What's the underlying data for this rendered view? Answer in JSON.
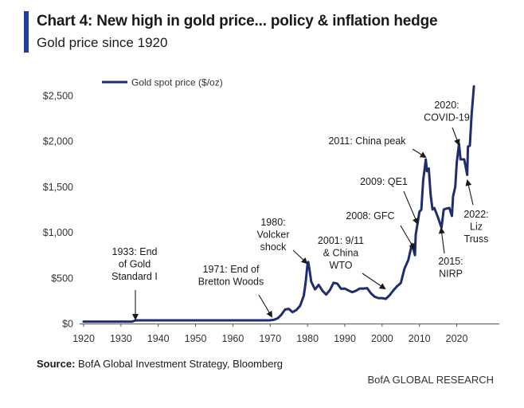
{
  "header": {
    "title": "Chart 4: New high in gold price... policy & inflation hedge",
    "subtitle": "Gold price since 1920"
  },
  "footer": {
    "source_label": "Source:",
    "source_text": " BofA Global Investment Strategy, Bloomberg",
    "brand": "BofA GLOBAL RESEARCH"
  },
  "colors": {
    "line": "#1f2d6e",
    "accent": "#1f3d99",
    "axis": "#555555"
  },
  "chart_data": {
    "type": "line",
    "title": "",
    "xlabel": "",
    "ylabel": "",
    "xlim": [
      1920,
      2025
    ],
    "ylim": [
      0,
      2700
    ],
    "x_ticks": [
      1920,
      1930,
      1940,
      1950,
      1960,
      1970,
      1980,
      1990,
      2000,
      2010,
      2020
    ],
    "y_ticks": [
      0,
      500,
      1000,
      1500,
      2000,
      2500
    ],
    "y_tick_labels": [
      "$0",
      "$500",
      "$1,000",
      "$1,500",
      "$2,000",
      "$2,500"
    ],
    "legend": {
      "position": "top-left",
      "entries": [
        "Gold spot price ($/oz)"
      ]
    },
    "series": [
      {
        "name": "Gold spot price ($/oz)",
        "points": [
          [
            1920,
            20.7
          ],
          [
            1933,
            20.7
          ],
          [
            1934,
            35
          ],
          [
            1968,
            35
          ],
          [
            1970,
            36
          ],
          [
            1971,
            41
          ],
          [
            1972,
            58
          ],
          [
            1973,
            97
          ],
          [
            1974,
            154
          ],
          [
            1975,
            161
          ],
          [
            1976,
            125
          ],
          [
            1977,
            148
          ],
          [
            1978,
            193
          ],
          [
            1979,
            306
          ],
          [
            1979.5,
            450
          ],
          [
            1980,
            650
          ],
          [
            1980.2,
            675
          ],
          [
            1980.5,
            600
          ],
          [
            1981,
            460
          ],
          [
            1982,
            375
          ],
          [
            1983,
            424
          ],
          [
            1984,
            360
          ],
          [
            1985,
            317
          ],
          [
            1986,
            368
          ],
          [
            1987,
            447
          ],
          [
            1988,
            437
          ],
          [
            1989,
            381
          ],
          [
            1990,
            384
          ],
          [
            1991,
            362
          ],
          [
            1992,
            344
          ],
          [
            1993,
            360
          ],
          [
            1994,
            384
          ],
          [
            1995,
            384
          ],
          [
            1996,
            388
          ],
          [
            1997,
            331
          ],
          [
            1998,
            294
          ],
          [
            1999,
            279
          ],
          [
            2000,
            279
          ],
          [
            2001,
            271
          ],
          [
            2002,
            310
          ],
          [
            2003,
            363
          ],
          [
            2004,
            409
          ],
          [
            2005,
            445
          ],
          [
            2006,
            604
          ],
          [
            2007,
            696
          ],
          [
            2008,
            872
          ],
          [
            2008.8,
            750
          ],
          [
            2009,
            972
          ],
          [
            2010,
            1225
          ],
          [
            2010.5,
            1250
          ],
          [
            2011,
            1570
          ],
          [
            2011.7,
            1800
          ],
          [
            2012,
            1670
          ],
          [
            2012.5,
            1700
          ],
          [
            2013,
            1410
          ],
          [
            2013.5,
            1250
          ],
          [
            2014,
            1266
          ],
          [
            2015,
            1160
          ],
          [
            2015.9,
            1050
          ],
          [
            2016.5,
            1250
          ],
          [
            2017,
            1257
          ],
          [
            2018,
            1268
          ],
          [
            2018.7,
            1180
          ],
          [
            2019,
            1393
          ],
          [
            2019.6,
            1500
          ],
          [
            2020,
            1770
          ],
          [
            2020.6,
            1970
          ],
          [
            2021,
            1800
          ],
          [
            2022,
            1800
          ],
          [
            2022.8,
            1630
          ],
          [
            2023,
            1940
          ],
          [
            2023.5,
            1950
          ],
          [
            2024,
            2300
          ],
          [
            2024.6,
            2600
          ]
        ]
      }
    ],
    "annotations": [
      {
        "lines": [
          "1933: End",
          "of Gold",
          "Standard I"
        ],
        "x": 1933,
        "y": 21
      },
      {
        "lines": [
          "1971: End of",
          "Bretton Woods"
        ],
        "x": 1971,
        "y": 41
      },
      {
        "lines": [
          "1980:",
          "Volcker",
          "shock"
        ],
        "x": 1980,
        "y": 650
      },
      {
        "lines": [
          "2001: 9/11",
          "& China",
          "WTO"
        ],
        "x": 2001,
        "y": 271
      },
      {
        "lines": [
          "2008: GFC"
        ],
        "x": 2008,
        "y": 872
      },
      {
        "lines": [
          "2009: QE1"
        ],
        "x": 2009,
        "y": 1100
      },
      {
        "lines": [
          "2011: China peak"
        ],
        "x": 2011,
        "y": 1800
      },
      {
        "lines": [
          "2020:",
          "COVID-19"
        ],
        "x": 2020,
        "y": 1970
      },
      {
        "lines": [
          "2015:",
          "NIRP"
        ],
        "x": 2015,
        "y": 1060
      },
      {
        "lines": [
          "2022:",
          "Liz",
          "Truss"
        ],
        "x": 2022,
        "y": 1630
      }
    ]
  }
}
